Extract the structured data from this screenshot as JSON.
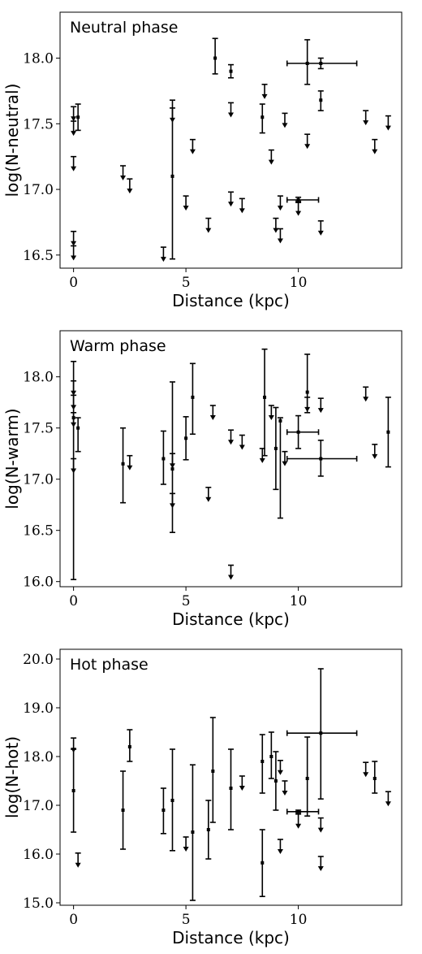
{
  "chart_data": [
    {
      "type": "scatter",
      "title": "Neutral phase",
      "xlabel": "Distance (kpc)",
      "ylabel": "log(N-neutral)",
      "xlim": [
        -0.6,
        14.6
      ],
      "ylim": [
        16.4,
        18.35
      ],
      "xticks": [
        0,
        5,
        10
      ],
      "xtick_labels": [
        "0",
        "5",
        "10"
      ],
      "yticks": [
        16.5,
        17.0,
        17.5,
        18.0
      ],
      "ytick_labels": [
        "16.5",
        "17.0",
        "17.5",
        "18.0"
      ],
      "grid": false,
      "legend": null,
      "measurements": [
        {
          "x": 0.2,
          "y": 17.55,
          "ylow": 17.45,
          "yhigh": 17.65
        },
        {
          "x": 6.3,
          "y": 18.0,
          "ylow": 17.88,
          "yhigh": 18.15
        },
        {
          "x": 7.0,
          "y": 17.9,
          "ylow": 17.85,
          "yhigh": 17.95
        },
        {
          "x": 8.4,
          "y": 17.55,
          "ylow": 17.43,
          "yhigh": 17.65
        },
        {
          "x": 10.4,
          "y": 17.96,
          "ylow": 17.8,
          "yhigh": 18.14,
          "xlow": 9.5,
          "xhigh": 12.6
        },
        {
          "x": 11.0,
          "y": 17.96,
          "ylow": 17.92,
          "yhigh": 18.0
        },
        {
          "x": 11.0,
          "y": 17.68,
          "ylow": 17.6,
          "yhigh": 17.75
        },
        {
          "x": 4.4,
          "y": 17.1,
          "ylow": 16.47,
          "yhigh": 17.68
        },
        {
          "x": 10.0,
          "y": 16.92,
          "ylow": 16.9,
          "yhigh": 16.94,
          "xlow": 9.5,
          "xhigh": 10.9
        }
      ],
      "upper_limits": [
        {
          "x": 0.0,
          "y": 17.63
        },
        {
          "x": 0.0,
          "y": 17.52
        },
        {
          "x": 0.0,
          "y": 17.25
        },
        {
          "x": 0.0,
          "y": 16.68
        },
        {
          "x": 0.0,
          "y": 16.57
        },
        {
          "x": 2.2,
          "y": 17.18
        },
        {
          "x": 2.5,
          "y": 17.08
        },
        {
          "x": 4.0,
          "y": 16.56
        },
        {
          "x": 4.4,
          "y": 17.62
        },
        {
          "x": 5.0,
          "y": 16.95
        },
        {
          "x": 5.3,
          "y": 17.38
        },
        {
          "x": 6.0,
          "y": 16.78
        },
        {
          "x": 7.0,
          "y": 17.66
        },
        {
          "x": 7.0,
          "y": 16.98
        },
        {
          "x": 7.5,
          "y": 16.93
        },
        {
          "x": 8.5,
          "y": 17.8
        },
        {
          "x": 8.8,
          "y": 17.3
        },
        {
          "x": 9.0,
          "y": 16.78
        },
        {
          "x": 9.2,
          "y": 16.95
        },
        {
          "x": 9.2,
          "y": 16.7
        },
        {
          "x": 9.4,
          "y": 17.58
        },
        {
          "x": 10.0,
          "y": 16.91
        },
        {
          "x": 10.4,
          "y": 17.42
        },
        {
          "x": 11.0,
          "y": 16.76
        },
        {
          "x": 13.0,
          "y": 17.6
        },
        {
          "x": 13.4,
          "y": 17.38
        },
        {
          "x": 14.0,
          "y": 17.56
        }
      ]
    },
    {
      "type": "scatter",
      "title": "Warm phase",
      "xlabel": "Distance (kpc)",
      "ylabel": "log(N-warm)",
      "xlim": [
        -0.6,
        14.6
      ],
      "ylim": [
        15.95,
        18.45
      ],
      "xticks": [
        0,
        5,
        10
      ],
      "xtick_labels": [
        "0",
        "5",
        "10"
      ],
      "yticks": [
        16.0,
        16.5,
        17.0,
        17.5,
        18.0
      ],
      "ytick_labels": [
        "16.0",
        "16.5",
        "17.0",
        "17.5",
        "18.0"
      ],
      "grid": false,
      "legend": null,
      "measurements": [
        {
          "x": 0.0,
          "y": 17.6,
          "ylow": 16.02,
          "yhigh": 18.15
        },
        {
          "x": 0.2,
          "y": 17.5,
          "ylow": 17.27,
          "yhigh": 17.6
        },
        {
          "x": 2.2,
          "y": 17.15,
          "ylow": 16.77,
          "yhigh": 17.5
        },
        {
          "x": 4.0,
          "y": 17.2,
          "ylow": 16.95,
          "yhigh": 17.47
        },
        {
          "x": 4.4,
          "y": 17.1,
          "ylow": 16.48,
          "yhigh": 17.95
        },
        {
          "x": 5.0,
          "y": 17.4,
          "ylow": 17.19,
          "yhigh": 17.61
        },
        {
          "x": 5.3,
          "y": 17.8,
          "ylow": 17.44,
          "yhigh": 18.13
        },
        {
          "x": 8.5,
          "y": 17.8,
          "ylow": 17.23,
          "yhigh": 18.27
        },
        {
          "x": 9.0,
          "y": 17.3,
          "ylow": 16.9,
          "yhigh": 17.7
        },
        {
          "x": 9.2,
          "y": 17.57,
          "ylow": 16.62,
          "yhigh": 17.6
        },
        {
          "x": 10.0,
          "y": 17.46,
          "ylow": 17.3,
          "yhigh": 17.62,
          "xlow": 9.5,
          "xhigh": 10.9
        },
        {
          "x": 10.4,
          "y": 17.85,
          "ylow": 17.65,
          "yhigh": 18.22
        },
        {
          "x": 11.0,
          "y": 17.2,
          "ylow": 17.03,
          "yhigh": 17.38,
          "xlow": 9.5,
          "xhigh": 12.6
        },
        {
          "x": 14.0,
          "y": 17.46,
          "ylow": 17.12,
          "yhigh": 17.8
        }
      ],
      "upper_limits": [
        {
          "x": 0.0,
          "y": 17.96
        },
        {
          "x": 0.0,
          "y": 17.82
        },
        {
          "x": 0.0,
          "y": 17.65
        },
        {
          "x": 0.0,
          "y": 17.2
        },
        {
          "x": 2.5,
          "y": 17.23
        },
        {
          "x": 4.4,
          "y": 17.25
        },
        {
          "x": 4.4,
          "y": 16.86
        },
        {
          "x": 6.0,
          "y": 16.92
        },
        {
          "x": 6.2,
          "y": 17.72
        },
        {
          "x": 7.0,
          "y": 17.48
        },
        {
          "x": 7.0,
          "y": 16.16
        },
        {
          "x": 7.5,
          "y": 17.43
        },
        {
          "x": 8.4,
          "y": 17.3
        },
        {
          "x": 8.8,
          "y": 17.72
        },
        {
          "x": 9.4,
          "y": 17.27
        },
        {
          "x": 10.4,
          "y": 17.8
        },
        {
          "x": 11.0,
          "y": 17.79
        },
        {
          "x": 13.0,
          "y": 17.9
        },
        {
          "x": 13.4,
          "y": 17.34
        }
      ]
    },
    {
      "type": "scatter",
      "title": "Hot phase",
      "xlabel": "Distance (kpc)",
      "ylabel": "log(N-hot)",
      "xlim": [
        -0.6,
        14.6
      ],
      "ylim": [
        14.95,
        20.2
      ],
      "xticks": [
        0,
        5,
        10
      ],
      "xtick_labels": [
        "0",
        "5",
        "10"
      ],
      "yticks": [
        15.0,
        16.0,
        17.0,
        18.0,
        19.0,
        20.0
      ],
      "ytick_labels": [
        "15.0",
        "16.0",
        "17.0",
        "18.0",
        "19.0",
        "20.0"
      ],
      "grid": false,
      "legend": null,
      "measurements": [
        {
          "x": 0.0,
          "y": 17.3,
          "ylow": 16.45,
          "yhigh": 18.15
        },
        {
          "x": 2.2,
          "y": 16.9,
          "ylow": 16.1,
          "yhigh": 17.7
        },
        {
          "x": 2.5,
          "y": 18.2,
          "ylow": 17.9,
          "yhigh": 18.55
        },
        {
          "x": 4.0,
          "y": 16.9,
          "ylow": 16.42,
          "yhigh": 17.35
        },
        {
          "x": 4.4,
          "y": 17.1,
          "ylow": 16.07,
          "yhigh": 18.15
        },
        {
          "x": 5.3,
          "y": 16.45,
          "ylow": 15.05,
          "yhigh": 17.83
        },
        {
          "x": 6.0,
          "y": 16.5,
          "ylow": 15.9,
          "yhigh": 17.1
        },
        {
          "x": 6.2,
          "y": 17.7,
          "ylow": 16.65,
          "yhigh": 18.8
        },
        {
          "x": 7.0,
          "y": 17.35,
          "ylow": 16.5,
          "yhigh": 18.15
        },
        {
          "x": 8.4,
          "y": 15.82,
          "ylow": 15.13,
          "yhigh": 16.5
        },
        {
          "x": 8.4,
          "y": 17.9,
          "ylow": 17.25,
          "yhigh": 18.45
        },
        {
          "x": 8.8,
          "y": 18.0,
          "ylow": 17.55,
          "yhigh": 18.5
        },
        {
          "x": 9.0,
          "y": 17.5,
          "ylow": 16.9,
          "yhigh": 18.1
        },
        {
          "x": 10.4,
          "y": 17.55,
          "ylow": 16.78,
          "yhigh": 18.4
        },
        {
          "x": 10.0,
          "y": 16.87,
          "ylow": 16.85,
          "yhigh": 16.9,
          "xlow": 9.5,
          "xhigh": 10.9
        },
        {
          "x": 11.0,
          "y": 18.48,
          "ylow": 17.13,
          "yhigh": 19.8,
          "xlow": 9.5,
          "xhigh": 12.6
        },
        {
          "x": 13.4,
          "y": 17.55,
          "ylow": 17.25,
          "yhigh": 17.9
        }
      ],
      "upper_limits": [
        {
          "x": 0.0,
          "y": 18.38
        },
        {
          "x": 0.2,
          "y": 16.02
        },
        {
          "x": 5.0,
          "y": 16.35
        },
        {
          "x": 7.5,
          "y": 17.6
        },
        {
          "x": 9.2,
          "y": 17.92
        },
        {
          "x": 9.2,
          "y": 16.3
        },
        {
          "x": 9.4,
          "y": 17.5
        },
        {
          "x": 10.0,
          "y": 16.82
        },
        {
          "x": 11.0,
          "y": 16.74
        },
        {
          "x": 11.0,
          "y": 15.95
        },
        {
          "x": 13.0,
          "y": 17.88
        },
        {
          "x": 14.0,
          "y": 17.28
        }
      ]
    }
  ]
}
